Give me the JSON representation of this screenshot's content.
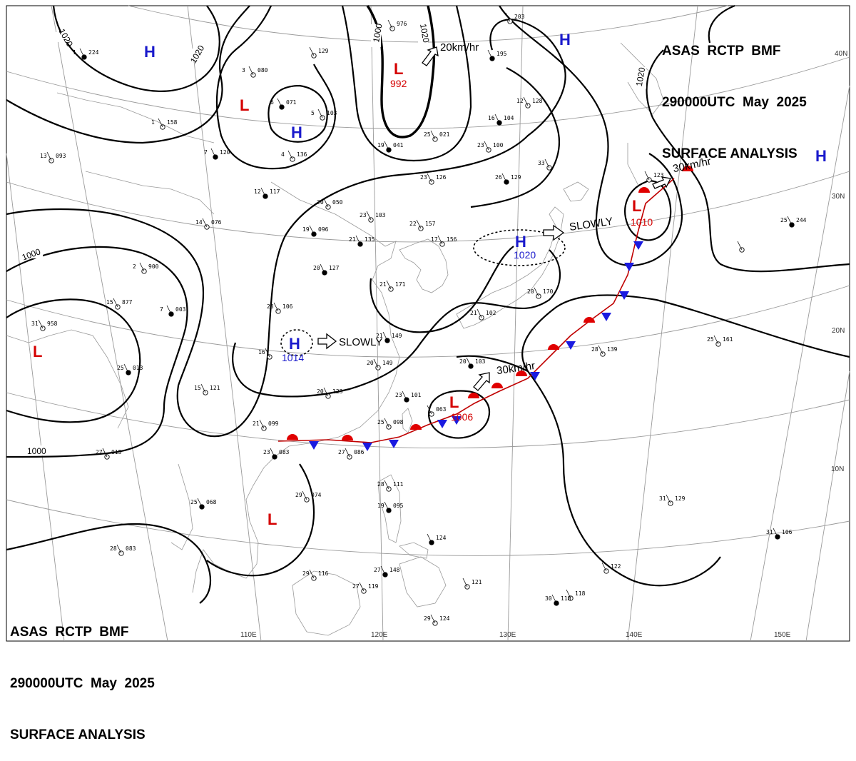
{
  "header": {
    "line1": "ASAS  RCTP  BMF",
    "line2": "290000UTC  May  2025",
    "line3": "SURFACE ANALYSIS"
  },
  "footer": {
    "line1": "ASAS  RCTP  BMF",
    "line2": "290000UTC  May  2025",
    "line3": "SURFACE ANALYSIS"
  },
  "colors": {
    "high": "#1a1acc",
    "low": "#d40000",
    "isobar": "#000000",
    "warm_front": "#e00000",
    "cold_front": "#1a1ae0",
    "grid": "#9a9a9a"
  },
  "graticule": {
    "longitudes": [
      "110E",
      "120E",
      "130E",
      "140E",
      "150E"
    ],
    "latitudes": [
      "10N",
      "20N",
      "30N",
      "40N"
    ]
  },
  "isobar_labels": [
    "1020",
    "1020",
    "1000",
    "1020",
    "1000",
    "1020",
    "1000"
  ],
  "pressure_systems": [
    {
      "type": "H",
      "pressure": ""
    },
    {
      "type": "L",
      "pressure": ""
    },
    {
      "type": "H",
      "pressure": ""
    },
    {
      "type": "L",
      "pressure": "992"
    },
    {
      "type": "H",
      "pressure": ""
    },
    {
      "type": "H",
      "pressure": ""
    },
    {
      "type": "L",
      "pressure": "1010"
    },
    {
      "type": "H",
      "pressure": "1020"
    },
    {
      "type": "H",
      "pressure": "1014"
    },
    {
      "type": "L",
      "pressure": "1006"
    },
    {
      "type": "L",
      "pressure": ""
    },
    {
      "type": "L",
      "pressure": ""
    }
  ],
  "movements": [
    "20km/hr",
    "30km/hr",
    "SLOWLY",
    "SLOWLY",
    "30km/hr"
  ],
  "stations": [
    {
      "t": "1",
      "p": "224"
    },
    {
      "t": "",
      "p": "129"
    },
    {
      "t": "3",
      "p": "080"
    },
    {
      "t": "6",
      "p": "071"
    },
    {
      "t": "5",
      "p": "103"
    },
    {
      "t": "1",
      "p": "158"
    },
    {
      "t": "7",
      "p": "120"
    },
    {
      "t": "4",
      "p": "136"
    },
    {
      "t": "13",
      "p": "093"
    },
    {
      "t": "12",
      "p": "117"
    },
    {
      "t": "20",
      "p": "050"
    },
    {
      "t": "14",
      "p": "076"
    },
    {
      "t": "19",
      "p": "096"
    },
    {
      "t": "23",
      "p": "103"
    },
    {
      "t": "22",
      "p": "157"
    },
    {
      "t": "21",
      "p": "135"
    },
    {
      "t": "17",
      "p": "156"
    },
    {
      "t": "2",
      "p": "900"
    },
    {
      "t": "20",
      "p": "127"
    },
    {
      "t": "21",
      "p": "171"
    },
    {
      "t": "15",
      "p": "877"
    },
    {
      "t": "7",
      "p": "003"
    },
    {
      "t": "31",
      "p": "958"
    },
    {
      "t": "23",
      "p": "106"
    },
    {
      "t": "21",
      "p": "149"
    },
    {
      "t": "16",
      "p": ""
    },
    {
      "t": "20",
      "p": "149"
    },
    {
      "t": "25",
      "p": "013"
    },
    {
      "t": "15",
      "p": "121"
    },
    {
      "t": "20",
      "p": "123"
    },
    {
      "t": "23",
      "p": "101"
    },
    {
      "t": "21",
      "p": "099"
    },
    {
      "t": "25",
      "p": "098"
    },
    {
      "t": "23",
      "p": "083"
    },
    {
      "t": "27",
      "p": "086"
    },
    {
      "t": "27",
      "p": "015"
    },
    {
      "t": "25",
      "p": "068"
    },
    {
      "t": "29",
      "p": "074"
    },
    {
      "t": "28",
      "p": "111"
    },
    {
      "t": "19",
      "p": "095"
    },
    {
      "t": "28",
      "p": "083"
    },
    {
      "t": "29",
      "p": "116"
    },
    {
      "t": "27",
      "p": "148"
    },
    {
      "t": "27",
      "p": "119"
    },
    {
      "t": "",
      "p": "118"
    },
    {
      "t": "",
      "p": "124"
    },
    {
      "t": "",
      "p": "121"
    },
    {
      "t": "29",
      "p": "124"
    },
    {
      "t": "30",
      "p": "118"
    },
    {
      "t": "",
      "p": "122"
    },
    {
      "t": "31",
      "p": "129"
    },
    {
      "t": "31",
      "p": "106"
    },
    {
      "t": "25",
      "p": "161"
    },
    {
      "t": "28",
      "p": "139"
    },
    {
      "t": "20",
      "p": "103"
    },
    {
      "t": "21",
      "p": "102"
    },
    {
      "t": "20",
      "p": "170"
    },
    {
      "t": "16",
      "p": "104"
    },
    {
      "t": "12",
      "p": "128"
    },
    {
      "t": "23",
      "p": "100"
    },
    {
      "t": "26",
      "p": "129"
    },
    {
      "t": "23",
      "p": "126"
    },
    {
      "t": "25",
      "p": "021"
    },
    {
      "t": "19",
      "p": "041"
    },
    {
      "t": "",
      "p": "976"
    },
    {
      "t": "",
      "p": "203"
    },
    {
      "t": "",
      "p": "195"
    },
    {
      "t": "33",
      "p": ""
    },
    {
      "t": "",
      "p": "123"
    },
    {
      "t": "25",
      "p": "244"
    },
    {
      "t": "",
      "p": "063"
    },
    {
      "t": "",
      "p": ""
    }
  ]
}
